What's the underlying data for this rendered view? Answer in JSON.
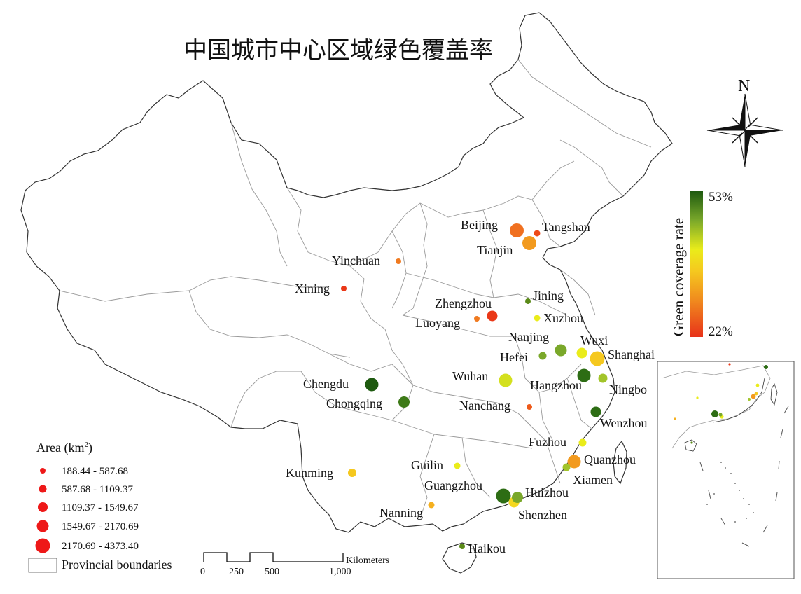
{
  "title": "中国城市中心区域绿色覆盖率",
  "north_label": "N",
  "color_legend": {
    "title": "Green coverage rate",
    "max_label": "53%",
    "min_label": "22%",
    "colors": [
      "#e8321a",
      "#f08a1e",
      "#f5c81f",
      "#eaec1a",
      "#a2c42a",
      "#2d6d14"
    ]
  },
  "size_legend": {
    "title": "Area (km",
    "title_sup": "2",
    "title_end": ")",
    "classes": [
      {
        "label": "188.44 - 587.68"
      },
      {
        "label": "587.68 - 1109.37"
      },
      {
        "label": "1109.37 - 1549.67"
      },
      {
        "label": "1549.67 - 2170.69"
      },
      {
        "label": "2170.69 - 4373.40"
      }
    ],
    "boundary_label": "Provincial boundaries"
  },
  "scale_bar": {
    "unit": "Kilometers",
    "ticks": [
      "0",
      "250",
      "500",
      "1,000"
    ]
  },
  "cities": [
    {
      "name": "Beijing",
      "color": "#f07020"
    },
    {
      "name": "Tangshan",
      "color": "#ee4a18"
    },
    {
      "name": "Tianjin",
      "color": "#f29a1e"
    },
    {
      "name": "Yinchuan",
      "color": "#f07a20"
    },
    {
      "name": "Xining",
      "color": "#ea3818"
    },
    {
      "name": "Jining",
      "color": "#5a8a18"
    },
    {
      "name": "Zhengzhou",
      "color": "#ea3818"
    },
    {
      "name": "Luoyang",
      "color": "#f07a20"
    },
    {
      "name": "Xuzhou",
      "color": "#eaec1a"
    },
    {
      "name": "Nanjing",
      "color": "#7aa82a"
    },
    {
      "name": "Wuxi",
      "color": "#eaec1a"
    },
    {
      "name": "Hefei",
      "color": "#7aa82a"
    },
    {
      "name": "Shanghai",
      "color": "#f5c81f"
    },
    {
      "name": "Hangzhou",
      "color": "#2d6d14"
    },
    {
      "name": "Ningbo",
      "color": "#a2c42a"
    },
    {
      "name": "Chengdu",
      "color": "#1e5a10"
    },
    {
      "name": "Wuhan",
      "color": "#d4e01e"
    },
    {
      "name": "Chongqing",
      "color": "#3e7a18"
    },
    {
      "name": "Nanchang",
      "color": "#ee5a1a"
    },
    {
      "name": "Wenzhou",
      "color": "#2d6d14"
    },
    {
      "name": "Fuzhou",
      "color": "#eaec1a"
    },
    {
      "name": "Kunming",
      "color": "#f5c81f"
    },
    {
      "name": "Guilin",
      "color": "#eaec1a"
    },
    {
      "name": "Quanzhou",
      "color": "#f29a1e"
    },
    {
      "name": "Xiamen",
      "color": "#a2c42a"
    },
    {
      "name": "Guangzhou",
      "color": "#2d6d14"
    },
    {
      "name": "Huizhou",
      "color": "#7aa82a"
    },
    {
      "name": "Shenzhen",
      "color": "#f5d81f"
    },
    {
      "name": "Nanning",
      "color": "#f5b01f"
    },
    {
      "name": "Haikou",
      "color": "#5a8a18"
    }
  ]
}
